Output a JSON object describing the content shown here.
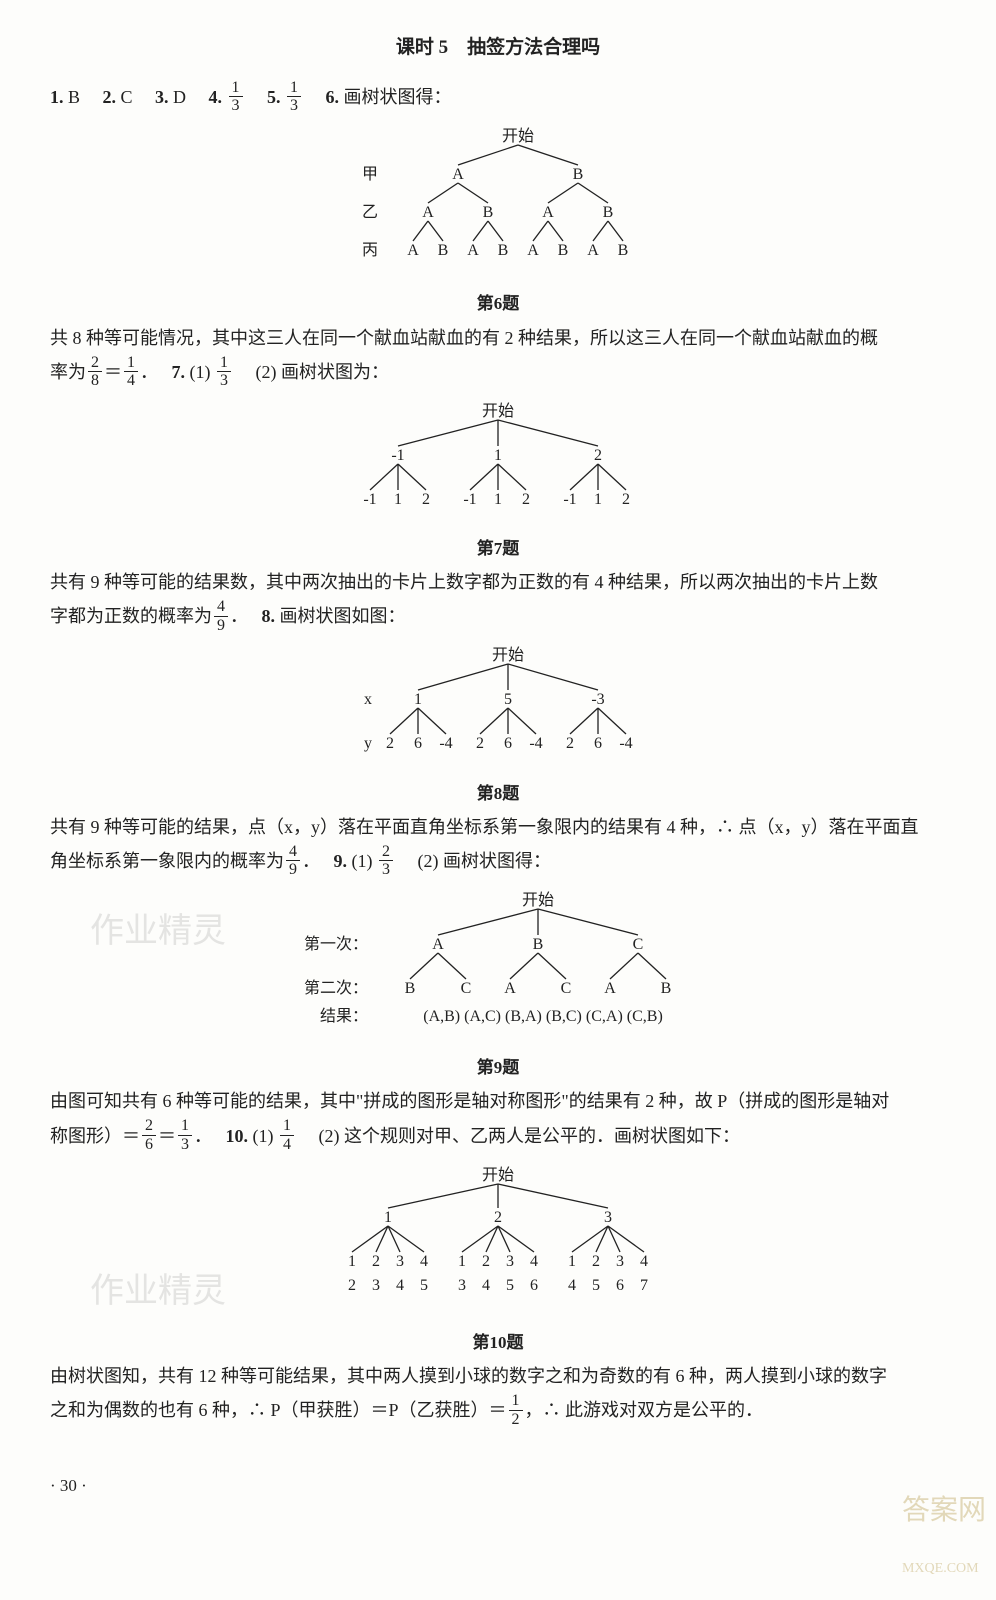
{
  "title": "课时 5　抽签方法合理吗",
  "line1": {
    "q1": "1.",
    "a1": "B",
    "q2": "2.",
    "a2": "C",
    "q3": "3.",
    "a3": "D",
    "q4": "4.",
    "a4_num": "1",
    "a4_den": "3",
    "q5": "5.",
    "a5_num": "1",
    "a5_den": "3",
    "q6": "6.",
    "a6": "画树状图得："
  },
  "d6": {
    "start": "开始",
    "row_labels": [
      "甲",
      "乙",
      "丙"
    ],
    "L1": [
      "A",
      "B"
    ],
    "L2": [
      "A",
      "B",
      "A",
      "B"
    ],
    "L3": [
      "A",
      "B",
      "A",
      "B",
      "A",
      "B",
      "A",
      "B"
    ],
    "caption": "第6题"
  },
  "p6a": "共 8 种等可能情况，其中这三人在同一个献血站献血的有 2 种结果，所以这三人在同一个献血站献血的概",
  "p6b_pre": "率为",
  "p6b_f1n": "2",
  "p6b_f1d": "8",
  "p6b_eq": "＝",
  "p6b_f2n": "1",
  "p6b_f2d": "4",
  "p6b_dot": "．",
  "q7": "7.",
  "q7_1": "(1)",
  "q7_1n": "1",
  "q7_1d": "3",
  "q7_2": "(2) 画树状图为：",
  "d7": {
    "start": "开始",
    "L1": [
      "-1",
      "1",
      "2"
    ],
    "L2": [
      "-1",
      "1",
      "2",
      "-1",
      "1",
      "2",
      "-1",
      "1",
      "2"
    ],
    "caption": "第7题"
  },
  "p7a": "共有 9 种等可能的结果数，其中两次抽出的卡片上数字都为正数的有 4 种结果，所以两次抽出的卡片上数",
  "p7b_pre": "字都为正数的概率为",
  "p7b_fn": "4",
  "p7b_fd": "9",
  "p7b_dot": "．",
  "q8": "8.",
  "q8t": "画树状图如图：",
  "d8": {
    "start": "开始",
    "xlabel": "x",
    "ylabel": "y",
    "L1": [
      "1",
      "5",
      "-3"
    ],
    "L2": [
      "2",
      "6",
      "-4",
      "2",
      "6",
      "-4",
      "2",
      "6",
      "-4"
    ],
    "caption": "第8题"
  },
  "p8a": "共有 9 种等可能的结果，点（x，y）落在平面直角坐标系第一象限内的结果有 4 种，∴ 点（x，y）落在平面直",
  "p8b_pre": "角坐标系第一象限内的概率为",
  "p8b_fn": "4",
  "p8b_fd": "9",
  "p8b_dot": "．",
  "q9": "9.",
  "q9_1": "(1)",
  "q9_1n": "2",
  "q9_1d": "3",
  "q9_2": "(2) 画树状图得：",
  "d9": {
    "start": "开始",
    "row1_label": "第一次：",
    "row2_label": "第二次：",
    "res_label": "结果：",
    "L1": [
      "A",
      "B",
      "C"
    ],
    "L2": [
      "B",
      "C",
      "A",
      "C",
      "A",
      "B"
    ],
    "results": "(A,B) (A,C) (B,A) (B,C) (C,A) (C,B)",
    "caption": "第9题"
  },
  "p9a": "由图可知共有 6 种等可能的结果，其中\"拼成的图形是轴对称图形\"的结果有 2 种，故 P（拼成的图形是轴对",
  "p9b_pre": "称图形）＝",
  "p9b_f1n": "2",
  "p9b_f1d": "6",
  "p9b_eq": "＝",
  "p9b_f2n": "1",
  "p9b_f2d": "3",
  "p9b_dot": "．",
  "q10": "10.",
  "q10_1": "(1)",
  "q10_1n": "1",
  "q10_1d": "4",
  "q10_2": "(2) 这个规则对甲、乙两人是公平的．画树状图如下：",
  "d10": {
    "start": "开始",
    "L1": [
      "1",
      "2",
      "3"
    ],
    "L2": [
      "1",
      "2",
      "3",
      "4",
      "1",
      "2",
      "3",
      "4",
      "1",
      "2",
      "3",
      "4"
    ],
    "L3": [
      "2",
      "3",
      "4",
      "5",
      "3",
      "4",
      "5",
      "6",
      "4",
      "5",
      "6",
      "7"
    ],
    "caption": "第10题"
  },
  "p10a": "由树状图知，共有 12 种等可能结果，其中两人摸到小球的数字之和为奇数的有 6 种，两人摸到小球的数字",
  "p10b_pre": "之和为偶数的也有 6 种，∴ P（甲获胜）＝P（乙获胜）＝",
  "p10b_fn": "1",
  "p10b_fd": "2",
  "p10b_post": "，∴ 此游戏对双方是公平的．",
  "pagefoot": "· 30 ·",
  "svg": {
    "stroke": "#222",
    "stroke_width": 1.3,
    "font_size": 16
  }
}
